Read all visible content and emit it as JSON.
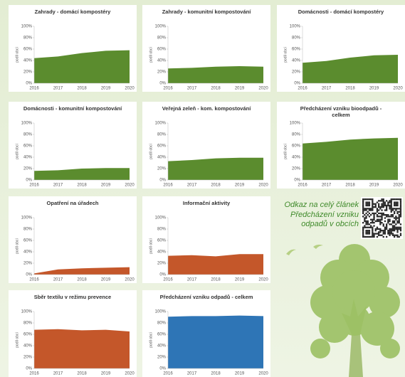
{
  "chart_data": [
    {
      "type": "area",
      "title": "Zahrady - domácí kompostéry",
      "categories": [
        "2016",
        "2017",
        "2018",
        "2019",
        "2020"
      ],
      "values": [
        44,
        47,
        53,
        57,
        58
      ],
      "color": "#5b8c2e",
      "ylabel": "podíl obcí",
      "ylim": [
        0,
        100
      ],
      "yticks": [
        {
          "value": 0,
          "label": "0%"
        },
        {
          "value": 20,
          "label": "20%"
        },
        {
          "value": 40,
          "label": "40%"
        },
        {
          "value": 60,
          "label": "60%"
        },
        {
          "value": 80,
          "label": "80%"
        },
        {
          "value": 100,
          "label": "100%"
        }
      ],
      "grid": false
    },
    {
      "type": "area",
      "title": "Zahrady - komunitní kompostování",
      "categories": [
        "2016",
        "2017",
        "2018",
        "2019",
        "2020"
      ],
      "values": [
        26,
        27,
        29,
        30,
        29
      ],
      "color": "#5b8c2e",
      "ylabel": "podíl obcí",
      "ylim": [
        0,
        100
      ],
      "yticks": [
        {
          "value": 0,
          "label": "0%"
        },
        {
          "value": 20,
          "label": "20%"
        },
        {
          "value": 40,
          "label": "40%"
        },
        {
          "value": 60,
          "label": "60%"
        },
        {
          "value": 80,
          "label": "80%"
        },
        {
          "value": 100,
          "label": "100%"
        }
      ],
      "grid": false
    },
    {
      "type": "area",
      "title": "Domácnosti - domácí kompostéry",
      "categories": [
        "2016",
        "2017",
        "2018",
        "2019",
        "2020"
      ],
      "values": [
        36,
        39,
        45,
        49,
        50
      ],
      "color": "#5b8c2e",
      "ylabel": "podíl obcí",
      "ylim": [
        0,
        100
      ],
      "yticks": [
        {
          "value": 0,
          "label": "0%"
        },
        {
          "value": 20,
          "label": "20%"
        },
        {
          "value": 40,
          "label": "40%"
        },
        {
          "value": 60,
          "label": "60%"
        },
        {
          "value": 80,
          "label": "80%"
        },
        {
          "value": 100,
          "label": "100%"
        }
      ],
      "grid": false
    },
    {
      "type": "area",
      "title": "Domácnosti - komunitní kompostování",
      "categories": [
        "2016",
        "2017",
        "2018",
        "2019",
        "2020"
      ],
      "values": [
        16,
        17,
        20,
        21,
        21
      ],
      "color": "#5b8c2e",
      "ylabel": "podíl obcí",
      "ylim": [
        0,
        100
      ],
      "yticks": [
        {
          "value": 0,
          "label": "0%"
        },
        {
          "value": 20,
          "label": "20%"
        },
        {
          "value": 40,
          "label": "40%"
        },
        {
          "value": 60,
          "label": "60%"
        },
        {
          "value": 80,
          "label": "80%"
        },
        {
          "value": 100,
          "label": "100%"
        }
      ],
      "grid": false
    },
    {
      "type": "area",
      "title": "Veřejná zeleň - kom. kompostování",
      "categories": [
        "2016",
        "2017",
        "2018",
        "2019",
        "2020"
      ],
      "values": [
        33,
        35,
        38,
        39,
        39
      ],
      "color": "#5b8c2e",
      "ylabel": "podíl obcí",
      "ylim": [
        0,
        100
      ],
      "yticks": [
        {
          "value": 0,
          "label": "0%"
        },
        {
          "value": 20,
          "label": "20%"
        },
        {
          "value": 40,
          "label": "40%"
        },
        {
          "value": 60,
          "label": "60%"
        },
        {
          "value": 80,
          "label": "80%"
        },
        {
          "value": 100,
          "label": "100%"
        }
      ],
      "grid": false
    },
    {
      "type": "area",
      "title": "Předcházení vzniku bioodpadů - celkem",
      "categories": [
        "2016",
        "2017",
        "2018",
        "2019",
        "2020"
      ],
      "values": [
        64,
        67,
        71,
        73,
        74
      ],
      "color": "#5b8c2e",
      "ylabel": "podíl obcí",
      "ylim": [
        0,
        100
      ],
      "yticks": [
        {
          "value": 0,
          "label": "0%"
        },
        {
          "value": 20,
          "label": "20%"
        },
        {
          "value": 40,
          "label": "40%"
        },
        {
          "value": 60,
          "label": "60%"
        },
        {
          "value": 80,
          "label": "80%"
        },
        {
          "value": 100,
          "label": "100%"
        }
      ],
      "grid": false
    },
    {
      "type": "area",
      "title": "Opatření na úřadech",
      "categories": [
        "2016",
        "2017",
        "2018",
        "2019",
        "2020"
      ],
      "values": [
        2,
        9,
        11,
        12,
        13
      ],
      "color": "#c4572a",
      "ylabel": "podíl obcí",
      "ylim": [
        0,
        100
      ],
      "yticks": [
        {
          "value": 0,
          "label": "0%"
        },
        {
          "value": 20,
          "label": "20%"
        },
        {
          "value": 40,
          "label": "40%"
        },
        {
          "value": 60,
          "label": "60%"
        },
        {
          "value": 80,
          "label": "80%"
        },
        {
          "value": 100,
          "label": "100%"
        }
      ],
      "grid": false
    },
    {
      "type": "area",
      "title": "Informační aktivity",
      "categories": [
        "2016",
        "2017",
        "2018",
        "2019",
        "2020"
      ],
      "values": [
        33,
        34,
        32,
        36,
        36
      ],
      "color": "#c4572a",
      "ylabel": "podíl obcí",
      "ylim": [
        0,
        100
      ],
      "yticks": [
        {
          "value": 0,
          "label": "0%"
        },
        {
          "value": 20,
          "label": "20%"
        },
        {
          "value": 40,
          "label": "40%"
        },
        {
          "value": 60,
          "label": "60%"
        },
        {
          "value": 80,
          "label": "80%"
        },
        {
          "value": 100,
          "label": "100%"
        }
      ],
      "grid": false
    },
    {
      "type": "area",
      "title": "Sběr textilu v režimu prevence",
      "categories": [
        "2016",
        "2017",
        "2018",
        "2019",
        "2020"
      ],
      "values": [
        68,
        69,
        67,
        68,
        65
      ],
      "color": "#c4572a",
      "ylabel": "podíl obcí",
      "ylim": [
        0,
        100
      ],
      "yticks": [
        {
          "value": 0,
          "label": "0%"
        },
        {
          "value": 20,
          "label": "20%"
        },
        {
          "value": 40,
          "label": "40%"
        },
        {
          "value": 60,
          "label": "60%"
        },
        {
          "value": 80,
          "label": "80%"
        },
        {
          "value": 100,
          "label": "100%"
        }
      ],
      "grid": false
    },
    {
      "type": "area",
      "title": "Předcházení vzniku odpadů - celkem",
      "categories": [
        "2016",
        "2017",
        "2018",
        "2019",
        "2020"
      ],
      "values": [
        91,
        92,
        92,
        93,
        92
      ],
      "color": "#2e75b6",
      "ylabel": "podíl obcí",
      "ylim": [
        0,
        100
      ],
      "yticks": [
        {
          "value": 0,
          "label": "0%"
        },
        {
          "value": 20,
          "label": "20%"
        },
        {
          "value": 40,
          "label": "40%"
        },
        {
          "value": 60,
          "label": "60%"
        },
        {
          "value": 80,
          "label": "80%"
        },
        {
          "value": 100,
          "label": "100%"
        }
      ],
      "grid": false
    }
  ],
  "link_text": [
    "Odkaz na celý článek",
    "Předcházení vzniku",
    "odpadů v obcích"
  ]
}
